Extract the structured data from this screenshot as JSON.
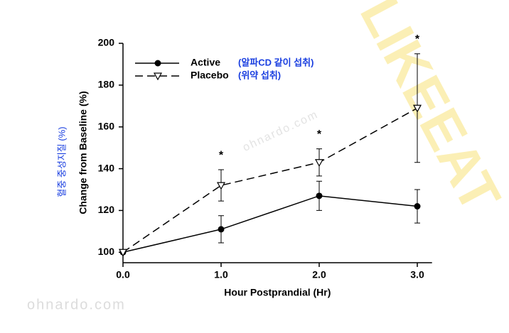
{
  "watermarks": [
    "ohnardo.com",
    "ohnardo.com",
    "LIKEEAT"
  ],
  "chart_data": {
    "type": "line",
    "x_label": "Hour Postprandial (Hr)",
    "y_label": "Change from Baseline (%)",
    "side_label": "혈중 중성지질 (%)",
    "x": [
      0,
      1,
      2,
      3
    ],
    "xlim": [
      0,
      3.15
    ],
    "xticks": [
      {
        "value": 0,
        "label": "0.0"
      },
      {
        "value": 1,
        "label": "1.0"
      },
      {
        "value": 2,
        "label": "2.0"
      },
      {
        "value": 3,
        "label": "3.0"
      }
    ],
    "ylim": [
      95,
      200
    ],
    "yticks": [
      100,
      120,
      140,
      160,
      180,
      200
    ],
    "series": [
      {
        "name": "Active",
        "note": "(알파CD 같이 섭취)",
        "color": "#000000",
        "marker": "circle",
        "dashed": false,
        "values": [
          100,
          111,
          127,
          122
        ],
        "errors": [
          0,
          6.5,
          7,
          8
        ]
      },
      {
        "name": "Placebo",
        "note": "(위약 섭취)",
        "color": "#000000",
        "marker": "triangle-down",
        "dashed": true,
        "values": [
          100,
          132,
          143,
          169
        ],
        "errors": [
          0,
          7.5,
          6.5,
          26
        ]
      }
    ],
    "note_color": "#1a3fe0",
    "annotations": [
      {
        "text": "*",
        "x": 1
      },
      {
        "text": "*",
        "x": 2
      },
      {
        "text": "*",
        "x": 3
      }
    ]
  }
}
